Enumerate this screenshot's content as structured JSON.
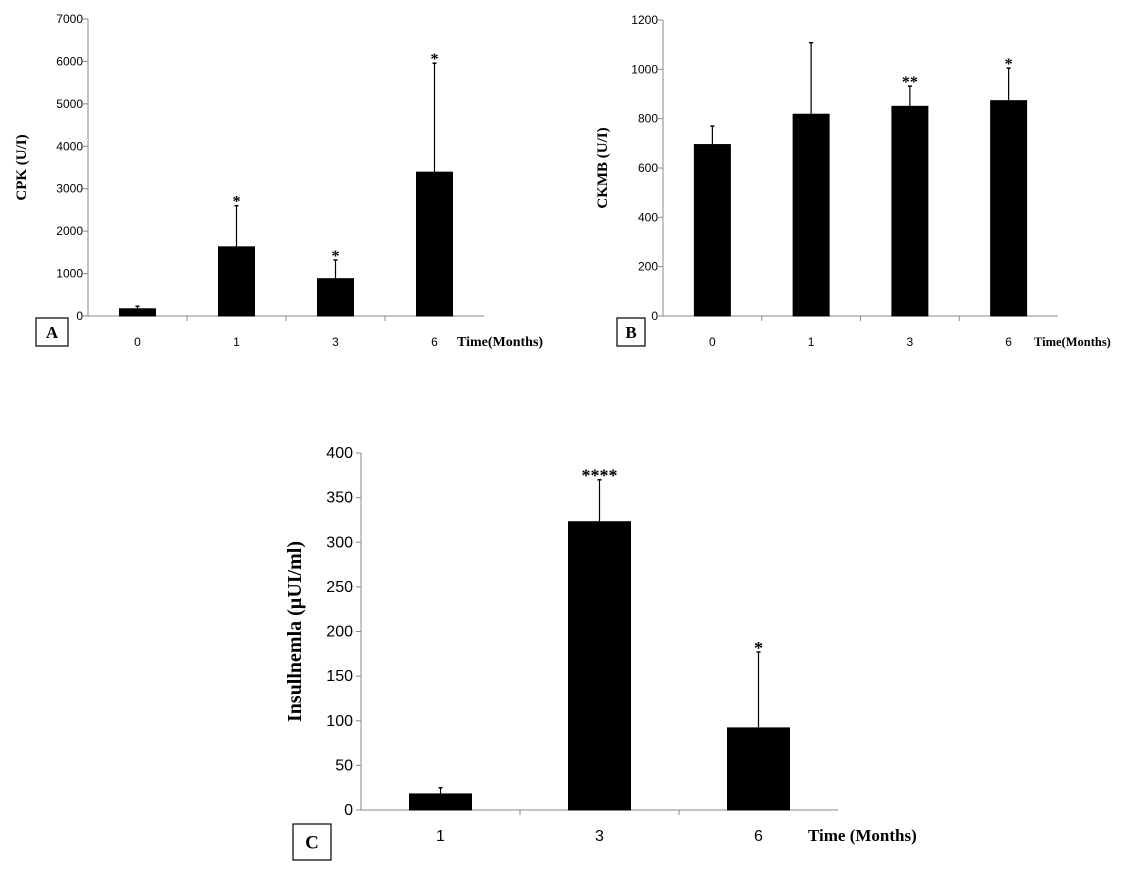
{
  "chart_data": [
    {
      "panel": "A",
      "type": "bar",
      "ylabel": "CPK (U/I)",
      "xlabel": "Time(Months)",
      "categories": [
        "0",
        "1",
        "3",
        "6"
      ],
      "values": [
        170,
        1630,
        880,
        3390
      ],
      "errors": [
        60,
        970,
        440,
        2570
      ],
      "significance": [
        "",
        "*",
        "*",
        "*"
      ],
      "ylim": [
        0,
        7000
      ],
      "yticks": [
        0,
        1000,
        2000,
        3000,
        4000,
        5000,
        6000,
        7000
      ],
      "grid": false,
      "color": "#000000"
    },
    {
      "panel": "B",
      "type": "bar",
      "ylabel": "CKMB (U/I)",
      "xlabel": "Time(Months)",
      "categories": [
        "0",
        "1",
        "3",
        "6"
      ],
      "values": [
        695,
        818,
        850,
        873
      ],
      "errors": [
        75,
        290,
        82,
        132
      ],
      "significance": [
        "",
        "",
        "**",
        "*"
      ],
      "ylim": [
        0,
        1200
      ],
      "yticks": [
        0,
        200,
        400,
        600,
        800,
        1000,
        1200
      ],
      "grid": false,
      "color": "#000000"
    },
    {
      "panel": "C",
      "type": "bar",
      "ylabel": "Insullnemla (µUI/ml)",
      "xlabel": "Time (Months)",
      "categories": [
        "1",
        "3",
        "6"
      ],
      "values": [
        18,
        323,
        92
      ],
      "errors": [
        7,
        47,
        85
      ],
      "significance": [
        "",
        "****",
        "*"
      ],
      "ylim": [
        0,
        400
      ],
      "yticks": [
        0,
        50,
        100,
        150,
        200,
        250,
        300,
        350,
        400
      ],
      "grid": false,
      "color": "#000000"
    }
  ]
}
